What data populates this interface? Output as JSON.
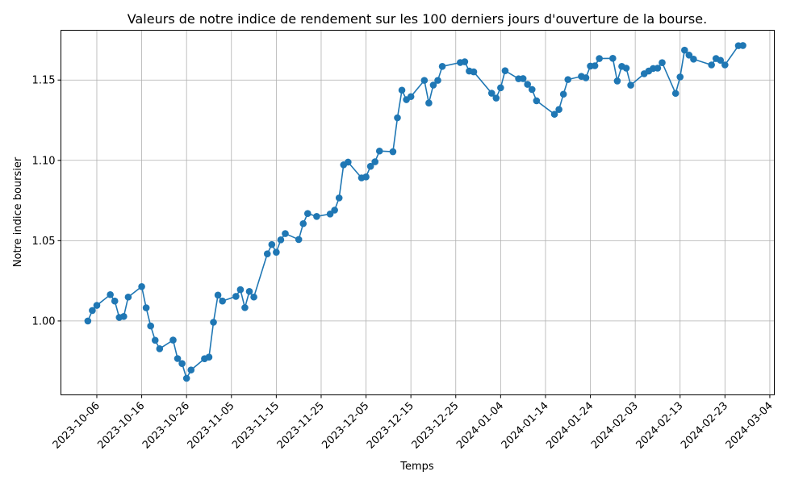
{
  "chart_data": {
    "type": "line",
    "title": "Valeurs de notre indice de rendement sur les 100 derniers jours d'ouverture de la bourse.",
    "xlabel": "Temps",
    "ylabel": "Notre indice boursier",
    "x_is_date": true,
    "xlim": [
      "2023-09-28",
      "2024-03-05"
    ],
    "ylim": [
      0.954,
      1.181
    ],
    "x_ticks": [
      "2023-10-06",
      "2023-10-16",
      "2023-10-26",
      "2023-11-05",
      "2023-11-15",
      "2023-11-25",
      "2023-12-05",
      "2023-12-15",
      "2023-12-25",
      "2024-01-04",
      "2024-01-14",
      "2024-01-24",
      "2024-02-03",
      "2024-02-13",
      "2024-02-23",
      "2024-03-04"
    ],
    "y_ticks": [
      1.0,
      1.05,
      1.1,
      1.15
    ],
    "y_tick_labels": [
      "1.00",
      "1.05",
      "1.10",
      "1.15"
    ],
    "grid": true,
    "legend": "none",
    "color": "#1f77b4",
    "marker": "circle",
    "series": [
      {
        "points": [
          [
            "2023-10-04",
            1.0
          ],
          [
            "2023-10-05",
            1.0065
          ],
          [
            "2023-10-06",
            1.0097
          ],
          [
            "2023-10-09",
            1.0164
          ],
          [
            "2023-10-10",
            1.0124
          ],
          [
            "2023-10-11",
            1.0022
          ],
          [
            "2023-10-12",
            1.0028
          ],
          [
            "2023-10-13",
            1.0149
          ],
          [
            "2023-10-16",
            1.0214
          ],
          [
            "2023-10-17",
            1.0082
          ],
          [
            "2023-10-18",
            0.9969
          ],
          [
            "2023-10-19",
            0.988
          ],
          [
            "2023-10-20",
            0.9827
          ],
          [
            "2023-10-23",
            0.9881
          ],
          [
            "2023-10-24",
            0.9766
          ],
          [
            "2023-10-25",
            0.9735
          ],
          [
            "2023-10-26",
            0.9643
          ],
          [
            "2023-10-27",
            0.9695
          ],
          [
            "2023-10-30",
            0.9765
          ],
          [
            "2023-10-31",
            0.9775
          ],
          [
            "2023-11-01",
            0.9992
          ],
          [
            "2023-11-02",
            1.0161
          ],
          [
            "2023-11-03",
            1.0124
          ],
          [
            "2023-11-06",
            1.0153
          ],
          [
            "2023-11-07",
            1.0195
          ],
          [
            "2023-11-08",
            1.0083
          ],
          [
            "2023-11-09",
            1.0184
          ],
          [
            "2023-11-10",
            1.0149
          ],
          [
            "2023-11-13",
            1.0418
          ],
          [
            "2023-11-14",
            1.0476
          ],
          [
            "2023-11-15",
            1.0428
          ],
          [
            "2023-11-16",
            1.0505
          ],
          [
            "2023-11-17",
            1.0544
          ],
          [
            "2023-11-20",
            1.0507
          ],
          [
            "2023-11-21",
            1.0606
          ],
          [
            "2023-11-22",
            1.0669
          ],
          [
            "2023-11-24",
            1.0651
          ],
          [
            "2023-11-27",
            1.0666
          ],
          [
            "2023-11-28",
            1.069
          ],
          [
            "2023-11-29",
            1.0766
          ],
          [
            "2023-11-30",
            1.0972
          ],
          [
            "2023-12-01",
            1.0989
          ],
          [
            "2023-12-04",
            1.0891
          ],
          [
            "2023-12-05",
            1.0897
          ],
          [
            "2023-12-06",
            1.0963
          ],
          [
            "2023-12-07",
            1.0991
          ],
          [
            "2023-12-08",
            1.1058
          ],
          [
            "2023-12-11",
            1.1054
          ],
          [
            "2023-12-12",
            1.1265
          ],
          [
            "2023-12-13",
            1.1437
          ],
          [
            "2023-12-14",
            1.1378
          ],
          [
            "2023-12-15",
            1.1397
          ],
          [
            "2023-12-18",
            1.1498
          ],
          [
            "2023-12-19",
            1.1357
          ],
          [
            "2023-12-20",
            1.1469
          ],
          [
            "2023-12-21",
            1.1498
          ],
          [
            "2023-12-22",
            1.1585
          ],
          [
            "2023-12-26",
            1.1609
          ],
          [
            "2023-12-27",
            1.1614
          ],
          [
            "2023-12-28",
            1.1556
          ],
          [
            "2023-12-29",
            1.1551
          ],
          [
            "2024-01-02",
            1.1418
          ],
          [
            "2024-01-03",
            1.1388
          ],
          [
            "2024-01-04",
            1.1452
          ],
          [
            "2024-01-05",
            1.1558
          ],
          [
            "2024-01-08",
            1.1508
          ],
          [
            "2024-01-09",
            1.1509
          ],
          [
            "2024-01-10",
            1.1473
          ],
          [
            "2024-01-11",
            1.1441
          ],
          [
            "2024-01-12",
            1.1371
          ],
          [
            "2024-01-16",
            1.1287
          ],
          [
            "2024-01-17",
            1.1317
          ],
          [
            "2024-01-18",
            1.1412
          ],
          [
            "2024-01-19",
            1.1503
          ],
          [
            "2024-01-22",
            1.1523
          ],
          [
            "2024-01-23",
            1.1514
          ],
          [
            "2024-01-24",
            1.1587
          ],
          [
            "2024-01-25",
            1.1589
          ],
          [
            "2024-01-26",
            1.1634
          ],
          [
            "2024-01-29",
            1.1635
          ],
          [
            "2024-01-30",
            1.1494
          ],
          [
            "2024-01-31",
            1.1585
          ],
          [
            "2024-02-01",
            1.1574
          ],
          [
            "2024-02-02",
            1.1468
          ],
          [
            "2024-02-05",
            1.1539
          ],
          [
            "2024-02-06",
            1.1556
          ],
          [
            "2024-02-07",
            1.1572
          ],
          [
            "2024-02-08",
            1.1574
          ],
          [
            "2024-02-09",
            1.1608
          ],
          [
            "2024-02-12",
            1.1417
          ],
          [
            "2024-02-13",
            1.1519
          ],
          [
            "2024-02-14",
            1.1686
          ],
          [
            "2024-02-15",
            1.1655
          ],
          [
            "2024-02-16",
            1.163
          ],
          [
            "2024-02-20",
            1.1594
          ],
          [
            "2024-02-21",
            1.1634
          ],
          [
            "2024-02-22",
            1.1623
          ],
          [
            "2024-02-23",
            1.1594
          ],
          [
            "2024-02-26",
            1.1714
          ],
          [
            "2024-02-27",
            1.1715
          ]
        ]
      }
    ]
  }
}
